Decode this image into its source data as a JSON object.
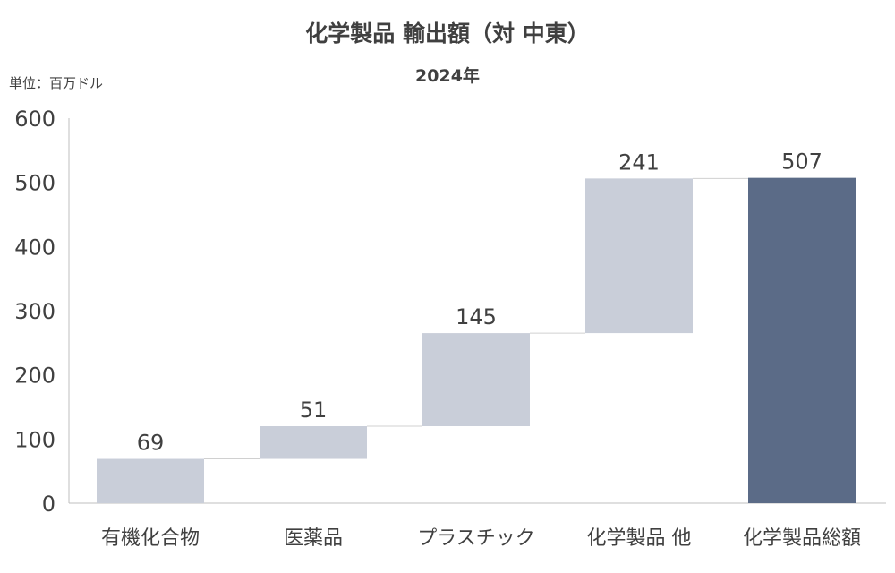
{
  "chart_data": {
    "type": "waterfall",
    "title": "化学製品 輸出額（対 中東）",
    "subtitle": "2024年",
    "unit_label": "単位：百万ドル",
    "categories": [
      "有機化合物",
      "医薬品",
      "プラスチック",
      "化学製品 他",
      "化学製品総額"
    ],
    "values": [
      69,
      51,
      145,
      241,
      507
    ],
    "data_labels": [
      "69",
      "51",
      "145",
      "241",
      "507"
    ],
    "total_index": 4,
    "ylim": [
      0,
      600
    ],
    "yticks": [
      "0",
      "100",
      "200",
      "300",
      "400",
      "500",
      "600"
    ],
    "grid": false,
    "colors": {
      "increment": "#c9ced9",
      "total": "#5b6b87",
      "connector": "#d0d0d0",
      "axis": "#bfbfbf",
      "text": "#404040"
    }
  }
}
